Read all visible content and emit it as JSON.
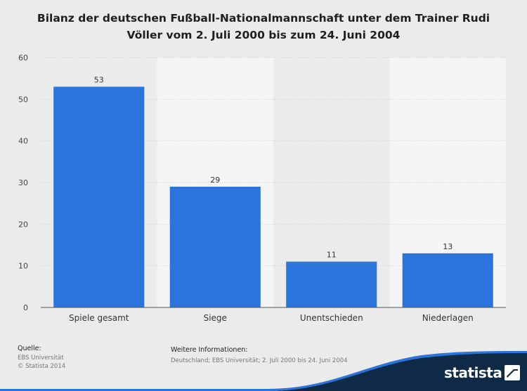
{
  "title_lines": [
    "Bilanz der deutschen Fußball-Nationalmannschaft unter dem Trainer Rudi",
    "Völler vom 2. Juli 2000 bis zum 24. Juni 2004"
  ],
  "chart_data": {
    "type": "bar",
    "title": "Bilanz der deutschen Fußball-Nationalmannschaft unter dem Trainer Rudi Völler vom 2. Juli 2000 bis zum 24. Juni 2004",
    "categories": [
      "Spiele gesamt",
      "Siege",
      "Unentschieden",
      "Niederlagen"
    ],
    "values": [
      53,
      29,
      11,
      13
    ],
    "data_labels": [
      "53",
      "29",
      "11",
      "13"
    ],
    "yticks": [
      0,
      10,
      20,
      30,
      40,
      50,
      60
    ],
    "ylim": [
      0,
      60
    ],
    "xlabel": "",
    "ylabel": "",
    "grid": true,
    "bar_color": "#2a74db"
  },
  "footer": {
    "source_label": "Quelle:",
    "source_lines": [
      "EBS Universität",
      "© Statista 2014"
    ],
    "info_label": "Weitere Informationen:",
    "info_text": "Deutschland; EBS Universität; 2. Juli 2000 bis 24. Juni 2004"
  },
  "brand": {
    "name": "statista",
    "color": "#0e2a47",
    "accent": "#2a74db"
  }
}
